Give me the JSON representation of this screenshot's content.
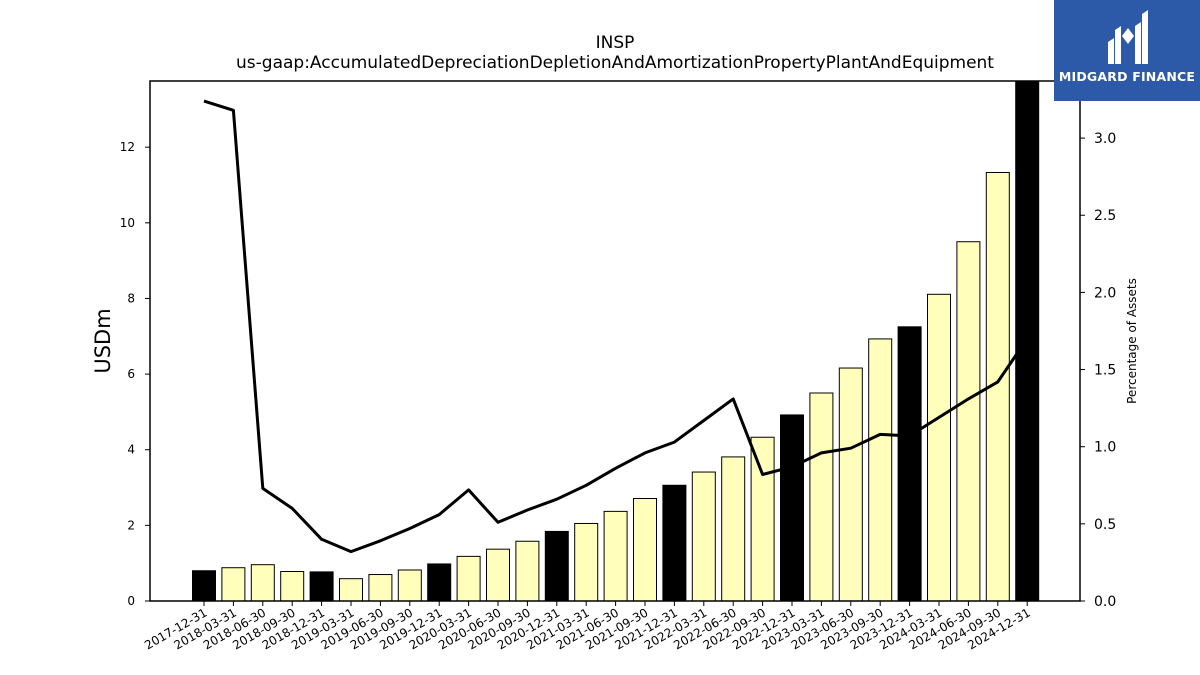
{
  "chart_data": {
    "type": "bar+line",
    "title": "INSP",
    "subtitle": "us-gaap:AccumulatedDepreciationDepletionAndAmortizationPropertyPlantAndEquipment",
    "ylabel": "USDm",
    "y2label": "Percentage of Assets",
    "ylim": [
      0,
      13.75
    ],
    "y2lim": [
      0,
      3.37
    ],
    "yticks": [
      "0",
      "2",
      "4",
      "6",
      "8",
      "10",
      "12"
    ],
    "y2ticks": [
      "0.0",
      "0.5",
      "1.0",
      "1.5",
      "2.0",
      "2.5",
      "3.0"
    ],
    "categories": [
      "2017-12-31",
      "2018-03-31",
      "2018-06-30",
      "2018-09-30",
      "2018-12-31",
      "2019-03-31",
      "2019-06-30",
      "2019-09-30",
      "2019-12-31",
      "2020-03-31",
      "2020-06-30",
      "2020-09-30",
      "2020-12-31",
      "2021-03-31",
      "2021-06-30",
      "2021-09-30",
      "2021-12-31",
      "2022-03-31",
      "2022-06-30",
      "2022-09-30",
      "2022-12-31",
      "2023-03-31",
      "2023-06-30",
      "2023-09-30",
      "2023-12-31",
      "2024-03-31",
      "2024-06-30",
      "2024-09-30",
      "2024-12-31"
    ],
    "series": [
      {
        "type": "bar",
        "values": [
          0.8,
          0.88,
          0.96,
          0.78,
          0.77,
          0.59,
          0.7,
          0.82,
          0.98,
          1.18,
          1.37,
          1.58,
          1.84,
          2.05,
          2.37,
          2.71,
          3.06,
          3.41,
          3.81,
          4.33,
          4.92,
          5.5,
          6.16,
          6.93,
          7.25,
          8.11,
          9.5,
          11.33,
          13.75
        ],
        "colors": [
          "#000000",
          "#ffffbb",
          "#ffffbb",
          "#ffffbb",
          "#000000",
          "#ffffbb",
          "#ffffbb",
          "#ffffbb",
          "#000000",
          "#ffffbb",
          "#ffffbb",
          "#ffffbb",
          "#000000",
          "#ffffbb",
          "#ffffbb",
          "#ffffbb",
          "#000000",
          "#ffffbb",
          "#ffffbb",
          "#ffffbb",
          "#000000",
          "#ffffbb",
          "#ffffbb",
          "#ffffbb",
          "#000000",
          "#ffffbb",
          "#ffffbb",
          "#ffffbb",
          "#000000"
        ]
      },
      {
        "type": "line",
        "axis": "right",
        "values": [
          3.24,
          3.18,
          0.73,
          0.6,
          0.4,
          0.32,
          0.39,
          0.47,
          0.56,
          0.72,
          0.51,
          0.59,
          0.66,
          0.75,
          0.86,
          0.96,
          1.03,
          1.17,
          1.31,
          0.82,
          0.87,
          0.96,
          0.99,
          1.08,
          1.07,
          1.19,
          1.31,
          1.42,
          1.7
        ],
        "color": "#000000"
      }
    ],
    "grid": false
  },
  "logo": {
    "text": "MIDGARD FINANCE",
    "background": "#2c5aa8"
  }
}
